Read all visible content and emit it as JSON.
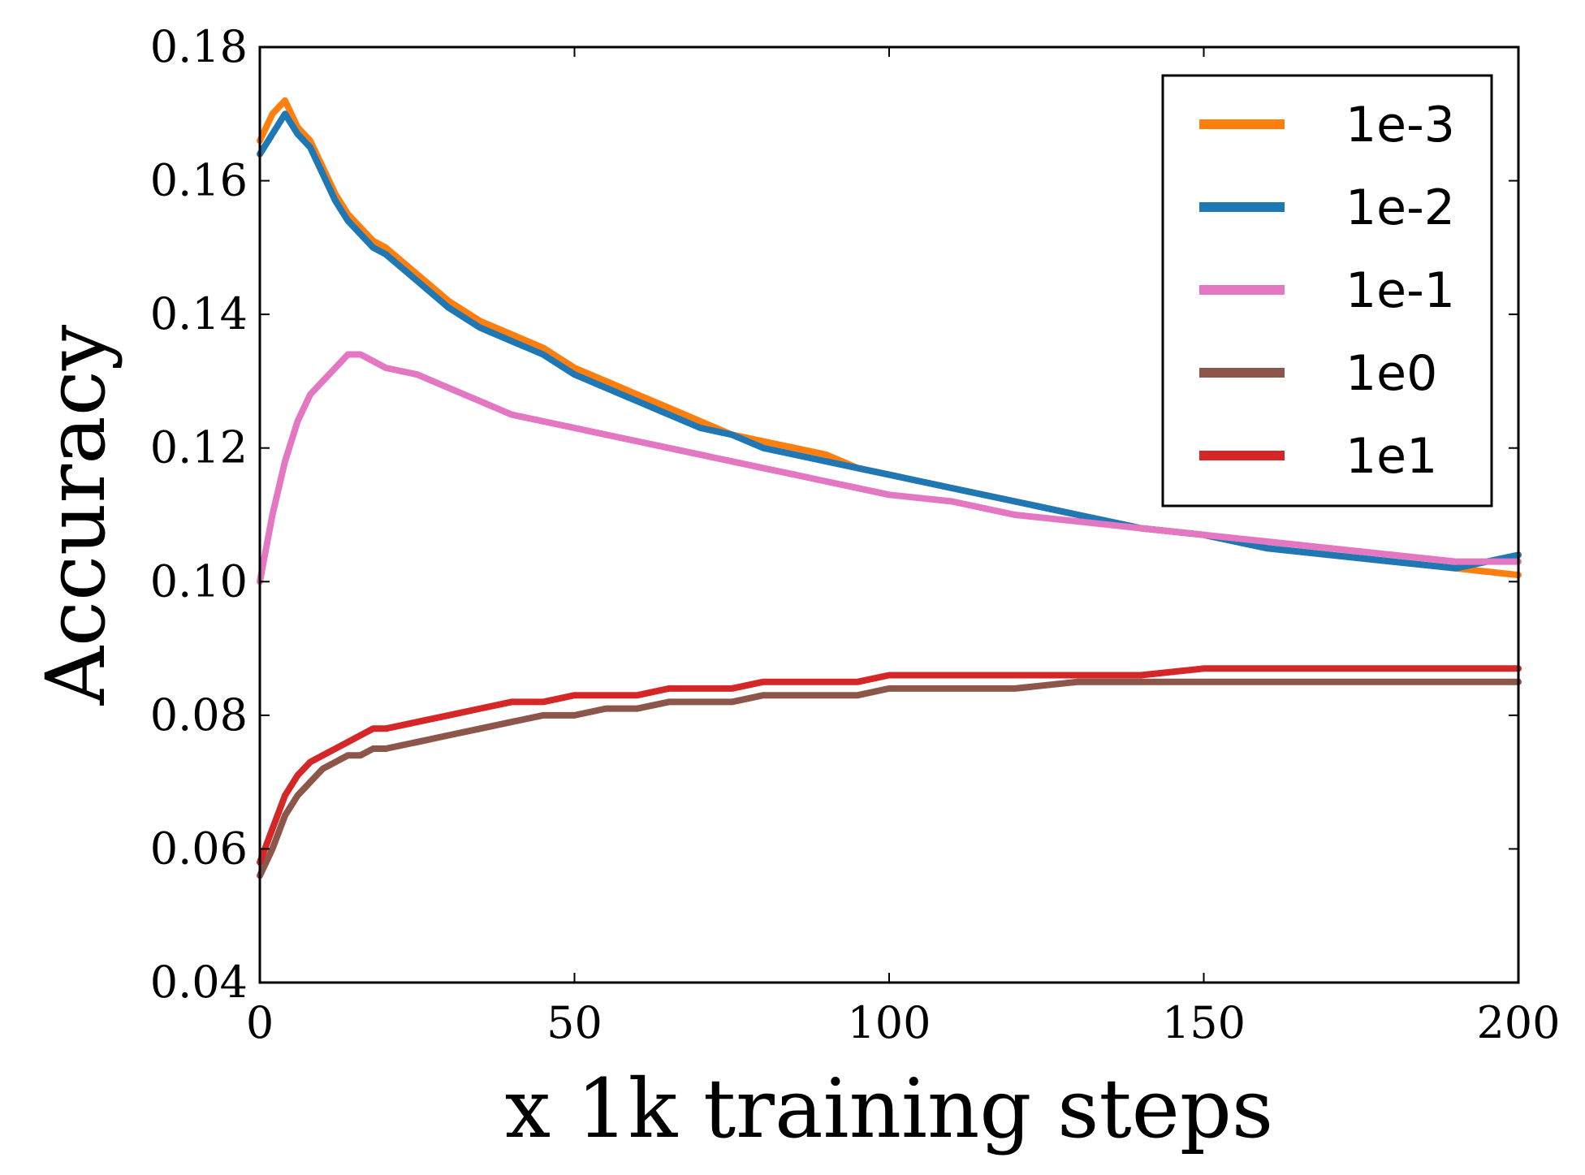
{
  "chart_data": {
    "type": "line",
    "title": "",
    "xlabel": "x 1k training steps",
    "ylabel": "Accuracy",
    "xlim": [
      0,
      200
    ],
    "ylim": [
      0.04,
      0.18
    ],
    "xticks": [
      0,
      50,
      100,
      150,
      200
    ],
    "xtick_labels": [
      "0",
      "50",
      "100",
      "150",
      "200"
    ],
    "yticks": [
      0.04,
      0.06,
      0.08,
      0.1,
      0.12,
      0.14,
      0.16,
      0.18
    ],
    "ytick_labels": [
      "0.04",
      "0.06",
      "0.08",
      "0.10",
      "0.12",
      "0.14",
      "0.16",
      "0.18"
    ],
    "grid": false,
    "legend_position": "top-right",
    "x": [
      0,
      2,
      4,
      6,
      8,
      10,
      12,
      14,
      16,
      18,
      20,
      25,
      30,
      35,
      40,
      45,
      50,
      55,
      60,
      65,
      70,
      75,
      80,
      85,
      90,
      95,
      100,
      110,
      120,
      130,
      140,
      150,
      160,
      170,
      180,
      190,
      200
    ],
    "series": [
      {
        "name": "1e-3",
        "color": "#ff7f0e",
        "values": [
          0.166,
          0.17,
          0.172,
          0.168,
          0.166,
          0.162,
          0.158,
          0.155,
          0.153,
          0.151,
          0.15,
          0.146,
          0.142,
          0.139,
          0.137,
          0.135,
          0.132,
          0.13,
          0.128,
          0.126,
          0.124,
          0.122,
          0.121,
          0.12,
          0.119,
          0.117,
          0.116,
          0.114,
          0.112,
          0.11,
          0.108,
          0.107,
          0.105,
          0.104,
          0.103,
          0.102,
          0.101
        ]
      },
      {
        "name": "1e-2",
        "color": "#1f77b4",
        "values": [
          0.164,
          0.167,
          0.17,
          0.167,
          0.165,
          0.161,
          0.157,
          0.154,
          0.152,
          0.15,
          0.149,
          0.145,
          0.141,
          0.138,
          0.136,
          0.134,
          0.131,
          0.129,
          0.127,
          0.125,
          0.123,
          0.122,
          0.12,
          0.119,
          0.118,
          0.117,
          0.116,
          0.114,
          0.112,
          0.11,
          0.108,
          0.107,
          0.105,
          0.104,
          0.103,
          0.102,
          0.104
        ]
      },
      {
        "name": "1e-1",
        "color": "#e377c2",
        "values": [
          0.1,
          0.11,
          0.118,
          0.124,
          0.128,
          0.13,
          0.132,
          0.134,
          0.134,
          0.133,
          0.132,
          0.131,
          0.129,
          0.127,
          0.125,
          0.124,
          0.123,
          0.122,
          0.121,
          0.12,
          0.119,
          0.118,
          0.117,
          0.116,
          0.115,
          0.114,
          0.113,
          0.112,
          0.11,
          0.109,
          0.108,
          0.107,
          0.106,
          0.105,
          0.104,
          0.103,
          0.103
        ]
      },
      {
        "name": "1e0",
        "color": "#8c564b",
        "values": [
          0.056,
          0.06,
          0.065,
          0.068,
          0.07,
          0.072,
          0.073,
          0.074,
          0.074,
          0.075,
          0.075,
          0.076,
          0.077,
          0.078,
          0.079,
          0.08,
          0.08,
          0.081,
          0.081,
          0.082,
          0.082,
          0.082,
          0.083,
          0.083,
          0.083,
          0.083,
          0.084,
          0.084,
          0.084,
          0.085,
          0.085,
          0.085,
          0.085,
          0.085,
          0.085,
          0.085,
          0.085
        ]
      },
      {
        "name": "1e1",
        "color": "#d62728",
        "values": [
          0.058,
          0.063,
          0.068,
          0.071,
          0.073,
          0.074,
          0.075,
          0.076,
          0.077,
          0.078,
          0.078,
          0.079,
          0.08,
          0.081,
          0.082,
          0.082,
          0.083,
          0.083,
          0.083,
          0.084,
          0.084,
          0.084,
          0.085,
          0.085,
          0.085,
          0.085,
          0.086,
          0.086,
          0.086,
          0.086,
          0.086,
          0.087,
          0.087,
          0.087,
          0.087,
          0.087,
          0.087
        ]
      }
    ]
  }
}
